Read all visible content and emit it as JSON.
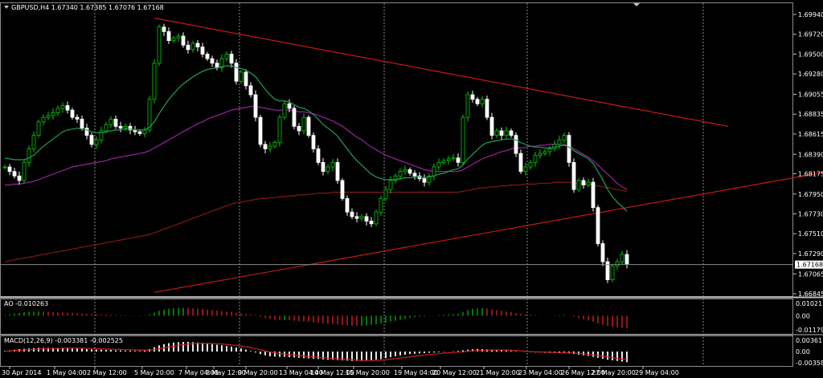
{
  "header": {
    "symbol_line": "GBPUSD,H4 1.67340 1.67385 1.67076 1.67168",
    "ao_label": "AO -0.010263",
    "macd_label": "MACD(12,26,9) -0.003381 -0.002525"
  },
  "colors": {
    "background": "#000000",
    "grid": "#8a8a8a",
    "candle_bull": "#00cc00",
    "candle_bear": "#ffffff",
    "ma_fast": "#1fa05a",
    "ma_mid": "#a020a0",
    "ma_slow": "#801818",
    "trendline": "#c81818",
    "ao_up": "#00aa00",
    "ao_down": "#cc2020",
    "macd_hist": "#e8e8e8",
    "macd_signal": "#cc2020"
  },
  "chart_data": [
    {
      "type": "candlestick",
      "title": "GBPUSD,H4",
      "current_price": "1.67168",
      "ylim": [
        1.66845,
        1.6994
      ],
      "y_ticks": [
        "1.69940",
        "1.69720",
        "1.69500",
        "1.69280",
        "1.69055",
        "1.68835",
        "1.68615",
        "1.68390",
        "1.68175",
        "1.67950",
        "1.67730",
        "1.67510",
        "1.67290",
        "1.67065",
        "1.66845"
      ],
      "x_ticks": [
        "30 Apr 2014",
        "1 May 04:00",
        "2 May 12:00",
        "5 May 20:00",
        "7 May 04:00",
        "8 May 12:00",
        "9 May 20:00",
        "13 May 04:00",
        "14 May 12:00",
        "15 May 20:00",
        "19 May 04:00",
        "20 May 12:00",
        "21 May 20:00",
        "23 May 04:00",
        "26 May 12:00",
        "27 May 20:00",
        "29 May 04:00"
      ],
      "series_close": [
        1.6825,
        1.682,
        1.6815,
        1.681,
        1.683,
        1.6845,
        1.686,
        1.6875,
        1.688,
        1.6882,
        1.6885,
        1.689,
        1.6893,
        1.6888,
        1.688,
        1.6878,
        1.6868,
        1.686,
        1.685,
        1.6855,
        1.6865,
        1.6872,
        1.6878,
        1.687,
        1.6868,
        1.687,
        1.6866,
        1.6864,
        1.6862,
        1.6866,
        1.69,
        1.694,
        1.698,
        1.6975,
        1.6965,
        1.6968,
        1.697,
        1.696,
        1.6955,
        1.6962,
        1.6958,
        1.695,
        1.6945,
        1.694,
        1.6935,
        1.6945,
        1.695,
        1.694,
        1.692,
        1.693,
        1.6915,
        1.6905,
        1.688,
        1.685,
        1.6845,
        1.6848,
        1.6852,
        1.688,
        1.6895,
        1.689,
        1.687,
        1.6865,
        1.688,
        1.686,
        1.6845,
        1.683,
        1.682,
        1.6825,
        1.683,
        1.681,
        1.679,
        1.6775,
        1.677,
        1.6768,
        1.677,
        1.6765,
        1.6762,
        1.6775,
        1.679,
        1.68,
        1.681,
        1.6815,
        1.682,
        1.6822,
        1.6818,
        1.6815,
        1.6812,
        1.6808,
        1.6815,
        1.6825,
        1.683,
        1.6832,
        1.6834,
        1.6835,
        1.683,
        1.688,
        1.6905,
        1.69,
        1.6895,
        1.69,
        1.688,
        1.686,
        1.6865,
        1.686,
        1.6865,
        1.686,
        1.684,
        1.682,
        1.6825,
        1.683,
        1.6838,
        1.684,
        1.6842,
        1.6845,
        1.685,
        1.6855,
        1.686,
        1.683,
        1.68,
        1.681,
        1.6805,
        1.6808,
        1.678,
        1.674,
        1.672,
        1.67,
        1.6715,
        1.672,
        1.6728,
        1.6717
      ],
      "ma_fast": [
        1.6835,
        1.6834,
        1.6833,
        1.6833,
        1.6833,
        1.6835,
        1.6838,
        1.6843,
        1.6848,
        1.6852,
        1.6856,
        1.686,
        1.6864,
        1.6866,
        1.6867,
        1.6868,
        1.6867,
        1.6866,
        1.6864,
        1.6863,
        1.6863,
        1.6864,
        1.6865,
        1.6866,
        1.6866,
        1.6867,
        1.6867,
        1.6866,
        1.6866,
        1.6866,
        1.6869,
        1.6875,
        1.6884,
        1.6892,
        1.69,
        1.6906,
        1.6912,
        1.6917,
        1.6921,
        1.6925,
        1.6928,
        1.6931,
        1.6933,
        1.6934,
        1.6935,
        1.6936,
        1.6937,
        1.6937,
        1.6935,
        1.6934,
        1.6932,
        1.6929,
        1.6925,
        1.6918,
        1.6911,
        1.6905,
        1.69,
        1.6898,
        1.6898,
        1.6897,
        1.6894,
        1.6891,
        1.689,
        1.6887,
        1.6883,
        1.6878,
        1.6872,
        1.6868,
        1.6864,
        1.6859,
        1.6852,
        1.6845,
        1.6838,
        1.6832,
        1.6827,
        1.6822,
        1.6817,
        1.6814,
        1.6812,
        1.6811,
        1.6811,
        1.6811,
        1.6812,
        1.6813,
        1.6813,
        1.6814,
        1.6814,
        1.6813,
        1.6814,
        1.6815,
        1.6817,
        1.6818,
        1.682,
        1.6822,
        1.6823,
        1.6827,
        1.6834,
        1.6839,
        1.6844,
        1.6849,
        1.6852,
        1.6853,
        1.6854,
        1.6855,
        1.6856,
        1.6856,
        1.6855,
        1.6852,
        1.685,
        1.6848,
        1.6847,
        1.6847,
        1.6846,
        1.6846,
        1.6847,
        1.6848,
        1.6849,
        1.6847,
        1.6843,
        1.684,
        1.6837,
        1.6834,
        1.6829,
        1.682,
        1.6811,
        1.68,
        1.6792,
        1.6786,
        1.6781,
        1.6776
      ],
      "ma_mid": [
        1.6805,
        1.6805,
        1.6806,
        1.6806,
        1.6807,
        1.6808,
        1.6809,
        1.6811,
        1.6813,
        1.6815,
        1.6817,
        1.6819,
        1.6821,
        1.6823,
        1.6825,
        1.6826,
        1.6827,
        1.6828,
        1.6829,
        1.683,
        1.6831,
        1.6832,
        1.6834,
        1.6835,
        1.6836,
        1.6837,
        1.6838,
        1.6839,
        1.684,
        1.6841,
        1.6843,
        1.6846,
        1.6849,
        1.6852,
        1.6855,
        1.6858,
        1.6861,
        1.6864,
        1.6867,
        1.687,
        1.6873,
        1.6875,
        1.6878,
        1.688,
        1.6882,
        1.6884,
        1.6886,
        1.6888,
        1.6889,
        1.689,
        1.6891,
        1.6892,
        1.6892,
        1.6891,
        1.689,
        1.6889,
        1.6888,
        1.6888,
        1.6888,
        1.6888,
        1.6887,
        1.6886,
        1.6886,
        1.6885,
        1.6884,
        1.6882,
        1.688,
        1.6878,
        1.6876,
        1.6873,
        1.687,
        1.6866,
        1.6862,
        1.6858,
        1.6855,
        1.6851,
        1.6847,
        1.6844,
        1.6841,
        1.6838,
        1.6836,
        1.6834,
        1.6832,
        1.683,
        1.6828,
        1.6826,
        1.6824,
        1.6822,
        1.6821,
        1.682,
        1.682,
        1.682,
        1.682,
        1.682,
        1.682,
        1.6822,
        1.6825,
        1.6828,
        1.6831,
        1.6834,
        1.6836,
        1.6838,
        1.684,
        1.6842,
        1.6843,
        1.6845,
        1.6846,
        1.6846,
        1.6847,
        1.6848,
        1.6848,
        1.6849,
        1.6849,
        1.685,
        1.685,
        1.685,
        1.685,
        1.6848,
        1.6845,
        1.6842,
        1.6839,
        1.6836,
        1.6832,
        1.6827,
        1.6822,
        1.6817,
        1.6812,
        1.6807,
        1.6803,
        1.68
      ],
      "ma_slow": [
        1.672,
        1.6721,
        1.6722,
        1.6723,
        1.6724,
        1.6725,
        1.6726,
        1.6727,
        1.6728,
        1.6729,
        1.673,
        1.6731,
        1.6732,
        1.6733,
        1.6734,
        1.6735,
        1.6736,
        1.6737,
        1.6738,
        1.6739,
        1.674,
        1.6741,
        1.6742,
        1.6743,
        1.6744,
        1.6745,
        1.6746,
        1.6747,
        1.6748,
        1.6749,
        1.675,
        1.6752,
        1.6754,
        1.6756,
        1.6758,
        1.676,
        1.6762,
        1.6764,
        1.6766,
        1.6768,
        1.677,
        1.6772,
        1.6774,
        1.6776,
        1.6778,
        1.678,
        1.6782,
        1.6784,
        1.6785,
        1.6786,
        1.6787,
        1.6788,
        1.6789,
        1.679,
        1.679,
        1.6791,
        1.6791,
        1.6792,
        1.6792,
        1.6793,
        1.6793,
        1.6794,
        1.6794,
        1.6795,
        1.6795,
        1.6796,
        1.6796,
        1.6796,
        1.6797,
        1.6797,
        1.6797,
        1.6797,
        1.6797,
        1.6797,
        1.6797,
        1.6797,
        1.6797,
        1.6797,
        1.6797,
        1.6797,
        1.6797,
        1.6797,
        1.6797,
        1.6797,
        1.6797,
        1.6797,
        1.6797,
        1.6797,
        1.6797,
        1.6797,
        1.6797,
        1.6797,
        1.6797,
        1.6797,
        1.6797,
        1.6798,
        1.6799,
        1.68,
        1.6801,
        1.6802,
        1.6802,
        1.6803,
        1.6803,
        1.6804,
        1.6804,
        1.6805,
        1.6805,
        1.6805,
        1.6806,
        1.6806,
        1.6806,
        1.6807,
        1.6807,
        1.6807,
        1.6808,
        1.6808,
        1.6808,
        1.6808,
        1.6807,
        1.6807,
        1.6806,
        1.6806,
        1.6805,
        1.6804,
        1.6803,
        1.6802,
        1.6801,
        1.68,
        1.6799,
        1.6798
      ],
      "trendlines": [
        {
          "from": [
            31,
            1.699
          ],
          "to": [
            150,
            1.687
          ]
        },
        {
          "from": [
            31,
            1.6686
          ],
          "to": [
            175,
            1.6824
          ]
        }
      ]
    },
    {
      "type": "bar",
      "title": "AO -0.010263",
      "y_ticks": [
        "0.010211",
        "0.00",
        "-0.01179"
      ],
      "ylim": [
        -0.01179,
        0.010211
      ],
      "values": [
        0.0005,
        0.0012,
        0.0018,
        0.0022,
        0.0028,
        0.0032,
        0.0034,
        0.0035,
        0.0034,
        0.0032,
        0.003,
        0.0028,
        0.0026,
        0.0024,
        0.0022,
        0.002,
        0.0018,
        0.0016,
        0.0014,
        0.0012,
        0.001,
        0.0009,
        0.0008,
        0.0006,
        0.0005,
        0.0004,
        0.0003,
        0.0002,
        0.0002,
        0.0003,
        0.0012,
        0.0025,
        0.004,
        0.005,
        0.0058,
        0.0062,
        0.0064,
        0.0065,
        0.0063,
        0.006,
        0.0057,
        0.0054,
        0.005,
        0.0046,
        0.0042,
        0.0038,
        0.0034,
        0.003,
        0.0025,
        0.002,
        0.0015,
        0.001,
        0.0004,
        -0.001,
        -0.002,
        -0.0028,
        -0.0034,
        -0.0036,
        -0.0036,
        -0.0038,
        -0.0042,
        -0.0046,
        -0.0048,
        -0.0052,
        -0.0056,
        -0.006,
        -0.0064,
        -0.0066,
        -0.0068,
        -0.0072,
        -0.0078,
        -0.0082,
        -0.0085,
        -0.0086,
        -0.0085,
        -0.0082,
        -0.0078,
        -0.0072,
        -0.0065,
        -0.0058,
        -0.005,
        -0.0042,
        -0.0034,
        -0.0026,
        -0.0018,
        -0.0012,
        -0.0008,
        -0.0005,
        -0.0002,
        0.0002,
        0.0005,
        0.0008,
        0.001,
        0.0012,
        0.0014,
        0.003,
        0.0045,
        0.0055,
        0.006,
        0.0062,
        0.0058,
        0.0052,
        0.0046,
        0.004,
        0.0034,
        0.0028,
        0.0022,
        0.0016,
        0.0012,
        0.0008,
        0.0004,
        0.0002,
        0.0001,
        0.0,
        0.0002,
        0.0004,
        0.0006,
        0.0002,
        -0.001,
        -0.002,
        -0.003,
        -0.004,
        -0.0052,
        -0.0065,
        -0.0076,
        -0.0086,
        -0.0094,
        -0.0098,
        -0.0101,
        -0.0103
      ]
    },
    {
      "type": "bar",
      "title": "MACD(12,26,9) -0.003381 -0.002525",
      "y_ticks": [
        "0.003617",
        "0.00",
        "-0.003584"
      ],
      "ylim": [
        -0.003584,
        0.003617
      ],
      "values": [
        0.0002,
        0.0004,
        0.0006,
        0.0008,
        0.0009,
        0.001,
        0.0011,
        0.0012,
        0.0012,
        0.0012,
        0.0012,
        0.0012,
        0.0012,
        0.0011,
        0.0011,
        0.001,
        0.0009,
        0.0008,
        0.0007,
        0.0006,
        0.0006,
        0.0005,
        0.0005,
        0.0004,
        0.0004,
        0.0003,
        0.0003,
        0.0002,
        0.0002,
        0.0003,
        0.0008,
        0.0014,
        0.002,
        0.0024,
        0.0027,
        0.0029,
        0.003,
        0.0031,
        0.0031,
        0.003,
        0.0029,
        0.0028,
        0.0026,
        0.0024,
        0.0022,
        0.002,
        0.0018,
        0.0016,
        0.0013,
        0.001,
        0.0006,
        0.0002,
        -0.0003,
        -0.0008,
        -0.0012,
        -0.0015,
        -0.0016,
        -0.0017,
        -0.0017,
        -0.0018,
        -0.0019,
        -0.002,
        -0.0021,
        -0.0022,
        -0.0023,
        -0.0024,
        -0.0025,
        -0.0026,
        -0.0026,
        -0.0027,
        -0.0028,
        -0.0029,
        -0.003,
        -0.003,
        -0.003,
        -0.0029,
        -0.0028,
        -0.0026,
        -0.0024,
        -0.0021,
        -0.0018,
        -0.0015,
        -0.0012,
        -0.001,
        -0.0008,
        -0.0007,
        -0.0006,
        -0.0005,
        -0.0004,
        -0.0003,
        -0.0002,
        -0.0001,
        0.0,
        0.0001,
        0.0002,
        0.0004,
        0.0006,
        0.0007,
        0.0008,
        0.0008,
        0.0007,
        0.0006,
        0.0005,
        0.0004,
        0.0003,
        0.0002,
        0.0001,
        0.0,
        -0.0001,
        -0.0002,
        -0.0003,
        -0.0003,
        -0.0004,
        -0.0004,
        -0.0004,
        -0.0005,
        -0.0005,
        -0.0006,
        -0.0008,
        -0.001,
        -0.0012,
        -0.0014,
        -0.0017,
        -0.002,
        -0.0023,
        -0.0026,
        -0.0028,
        -0.003,
        -0.0032,
        -0.0034
      ],
      "signal": [
        0.0001,
        0.0002,
        0.0003,
        0.0004,
        0.0005,
        0.0006,
        0.0007,
        0.0008,
        0.0009,
        0.0009,
        0.001,
        0.001,
        0.0011,
        0.0011,
        0.0011,
        0.0011,
        0.0011,
        0.001,
        0.001,
        0.0009,
        0.0009,
        0.0008,
        0.0008,
        0.0007,
        0.0007,
        0.0006,
        0.0006,
        0.0005,
        0.0005,
        0.0005,
        0.0005,
        0.0007,
        0.0009,
        0.0012,
        0.0015,
        0.0017,
        0.002,
        0.0022,
        0.0024,
        0.0025,
        0.0026,
        0.0026,
        0.0026,
        0.0026,
        0.0025,
        0.0024,
        0.0023,
        0.0021,
        0.002,
        0.0018,
        0.0015,
        0.0013,
        0.0009,
        0.0006,
        0.0002,
        -0.0001,
        -0.0004,
        -0.0006,
        -0.0008,
        -0.001,
        -0.0011,
        -0.0013,
        -0.0014,
        -0.0016,
        -0.0017,
        -0.0018,
        -0.002,
        -0.0021,
        -0.0022,
        -0.0023,
        -0.0024,
        -0.0025,
        -0.0026,
        -0.0027,
        -0.0028,
        -0.0028,
        -0.0028,
        -0.0028,
        -0.0027,
        -0.0026,
        -0.0024,
        -0.0023,
        -0.0021,
        -0.0019,
        -0.0017,
        -0.0015,
        -0.0013,
        -0.0011,
        -0.001,
        -0.0008,
        -0.0007,
        -0.0005,
        -0.0004,
        -0.0003,
        -0.0002,
        -0.0001,
        0.0001,
        0.0002,
        0.0003,
        0.0004,
        0.0005,
        0.0005,
        0.0005,
        0.0005,
        0.0005,
        0.0004,
        0.0003,
        0.0002,
        0.0001,
        0.0,
        -0.0001,
        -0.0001,
        -0.0002,
        -0.0003,
        -0.0003,
        -0.0004,
        -0.0004,
        -0.0004,
        -0.0005,
        -0.0006,
        -0.0007,
        -0.0009,
        -0.0011,
        -0.0013,
        -0.0015,
        -0.0017,
        -0.0019,
        -0.0022,
        -0.0024,
        -0.0025
      ]
    }
  ]
}
